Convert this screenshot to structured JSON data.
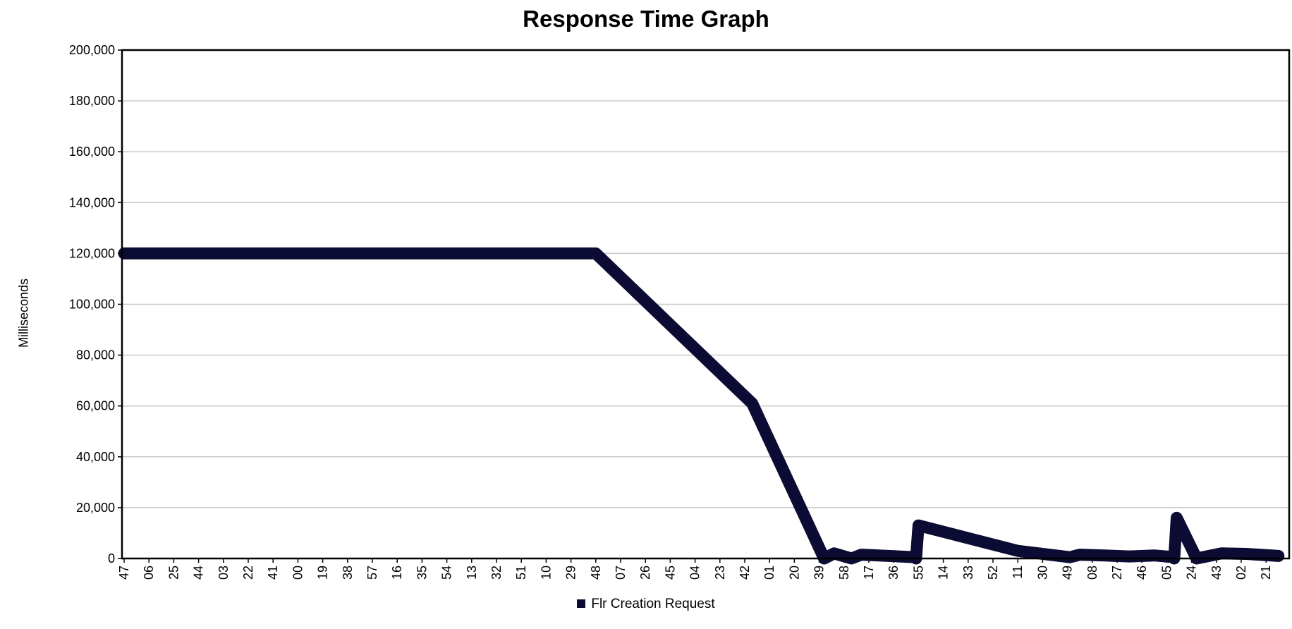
{
  "chart_data": {
    "type": "line",
    "title": "Response Time Graph",
    "xlabel": "",
    "ylabel": "Milliseconds",
    "ylim": [
      0,
      200000
    ],
    "y_ticks": [
      "0",
      "20,000",
      "40,000",
      "60,000",
      "80,000",
      "100,000",
      "120,000",
      "140,000",
      "160,000",
      "180,000",
      "200,000"
    ],
    "categories": [
      "47",
      "06",
      "25",
      "44",
      "03",
      "22",
      "41",
      "00",
      "19",
      "38",
      "57",
      "16",
      "35",
      "54",
      "13",
      "32",
      "51",
      "10",
      "29",
      "48",
      "07",
      "26",
      "45",
      "04",
      "23",
      "42",
      "01",
      "20",
      "39",
      "58",
      "17",
      "36",
      "55",
      "14",
      "33",
      "52",
      "11",
      "30",
      "49",
      "08",
      "27",
      "46",
      "05",
      "24",
      "43",
      "02",
      "21"
    ],
    "grid": true,
    "legend_position": "bottom",
    "series": [
      {
        "name": "Flr Creation Request",
        "color": "#0b0b33",
        "points": [
          [
            0,
            120000
          ],
          [
            19,
            120000
          ],
          [
            25.3,
            61000
          ],
          [
            28.2,
            0
          ],
          [
            28.6,
            2000
          ],
          [
            29.3,
            0
          ],
          [
            29.7,
            1500
          ],
          [
            31.9,
            500
          ],
          [
            31.9,
            0
          ],
          [
            32.0,
            13000
          ],
          [
            36.0,
            3000
          ],
          [
            38.1,
            500
          ],
          [
            38.5,
            1500
          ],
          [
            39.5,
            1200
          ],
          [
            40.5,
            800
          ],
          [
            41.5,
            1200
          ],
          [
            42.2,
            600
          ],
          [
            42.3,
            0
          ],
          [
            42.4,
            16000
          ],
          [
            43.2,
            0
          ],
          [
            44.2,
            2000
          ],
          [
            45.2,
            1800
          ],
          [
            46.5,
            1000
          ]
        ]
      }
    ]
  }
}
